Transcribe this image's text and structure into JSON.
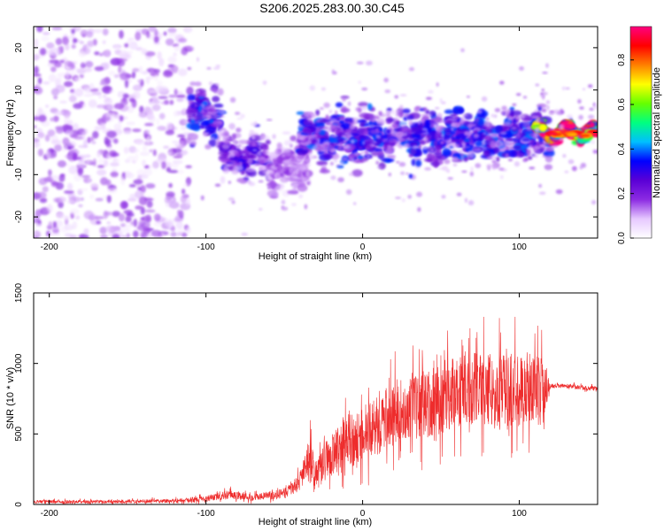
{
  "title": "S206.2025.283.00.30.C45",
  "chart_data": [
    {
      "type": "heatmap",
      "xlabel": "Height of straight line (km)",
      "ylabel": "Frequency (Hz)",
      "xlim": [
        -210,
        150
      ],
      "ylim": [
        -25,
        25
      ],
      "xticks": [
        "-200",
        "-100",
        "0",
        "100"
      ],
      "xtick_values": [
        -200,
        -100,
        0,
        100
      ],
      "yticks": [
        "-20",
        "-10",
        "0",
        "10",
        "20"
      ],
      "ytick_values": [
        -20,
        -10,
        0,
        10,
        20
      ],
      "colorbar": {
        "label": "Normalized spectral amplitude",
        "range": [
          0,
          0.95
        ],
        "ticks": [
          "0.0",
          "0.2",
          "0.4",
          "0.6",
          "0.8"
        ],
        "tick_values": [
          0.0,
          0.2,
          0.4,
          0.6,
          0.8
        ],
        "colormap": [
          "#ffffff",
          "#e6c8ff",
          "#8c2be2",
          "#5a00d6",
          "#0000ff",
          "#00bfff",
          "#00ff80",
          "#66ff00",
          "#ffff00",
          "#ff8000",
          "#ff0000",
          "#ff0080"
        ]
      },
      "features": [
        {
          "x_range": [
            -210,
            -110
          ],
          "freq_range": [
            -25,
            25
          ],
          "amplitude": 0.15
        },
        {
          "x_range": [
            -110,
            -90
          ],
          "freq_center": 4,
          "amplitude": 0.3
        },
        {
          "x_range": [
            -90,
            -60
          ],
          "freq_center": -6,
          "amplitude": 0.25
        },
        {
          "x_range": [
            -60,
            -35
          ],
          "freq_center": -8,
          "amplitude": 0.15
        },
        {
          "x_range": [
            -40,
            120
          ],
          "freq_center": -1,
          "amplitude": 0.3
        },
        {
          "x_range": [
            110,
            150
          ],
          "freq_center": 0,
          "amplitude": 0.9
        }
      ]
    },
    {
      "type": "line",
      "xlabel": "Height of straight line (km)",
      "ylabel": "SNR (10 * v/v)",
      "xlim": [
        -210,
        150
      ],
      "ylim": [
        0,
        1500
      ],
      "xticks": [
        "-200",
        "-100",
        "0",
        "100"
      ],
      "xtick_values": [
        -200,
        -100,
        0,
        100
      ],
      "yticks": [
        "0",
        "500",
        "1000",
        "1500"
      ],
      "ytick_values": [
        0,
        500,
        1000,
        1500
      ],
      "series": [
        {
          "color": "#ee2c2c",
          "envelope": {
            "x": [
              -210,
              -150,
              -110,
              -95,
              -85,
              -70,
              -55,
              -45,
              -40,
              -35,
              -33,
              -30,
              -25,
              -20,
              -15,
              -10,
              -5,
              0,
              10,
              20,
              30,
              40,
              50,
              55,
              60,
              70,
              80,
              90,
              100,
              110,
              115,
              120,
              130,
              140,
              150
            ],
            "mean": [
              20,
              20,
              30,
              50,
              70,
              50,
              70,
              110,
              170,
              300,
              350,
              180,
              300,
              340,
              380,
              480,
              430,
              490,
              560,
              660,
              680,
              720,
              760,
              790,
              800,
              820,
              830,
              790,
              820,
              830,
              800,
              840,
              840,
              830,
              820
            ],
            "spread": [
              15,
              15,
              20,
              30,
              40,
              30,
              40,
              50,
              90,
              140,
              300,
              150,
              170,
              200,
              220,
              250,
              260,
              230,
              260,
              280,
              280,
              300,
              330,
              330,
              320,
              320,
              330,
              340,
              340,
              330,
              300,
              20,
              20,
              20,
              20
            ]
          }
        }
      ]
    }
  ]
}
